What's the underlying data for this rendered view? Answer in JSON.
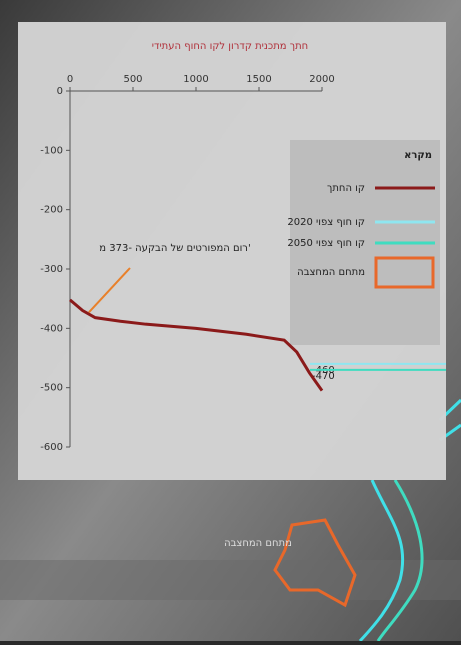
{
  "chart_data": {
    "type": "line",
    "title": "חתך מתכנית קדרון לקו החוף העתידי",
    "x": [
      0,
      100,
      200,
      400,
      600,
      1000,
      1400,
      1700,
      1800,
      1900,
      2000
    ],
    "series": [
      {
        "name": "קו החתך",
        "color": "#8b1a1a",
        "values": [
          -352,
          -370,
          -382,
          -388,
          -393,
          -400,
          -410,
          -420,
          -440,
          -475,
          -505
        ]
      }
    ],
    "xlim": [
      0,
      2000
    ],
    "xticks": [
      0,
      500,
      1000,
      1500,
      2000
    ],
    "ylim": [
      -600,
      0
    ],
    "yticks": [
      0,
      -100,
      -200,
      -300,
      -400,
      -500,
      -600
    ],
    "legend_title": "מקרא",
    "levels": [
      {
        "name": "קו חוף צפוי 2020",
        "color": "#8fe6f0",
        "value": -460
      },
      {
        "name": "קו חוף צפוי 2050",
        "color": "#3fdcc0",
        "value": -470
      }
    ],
    "area": {
      "name": "מתחם המחצבה",
      "color": "#e8682a"
    },
    "annotation": {
      "text": "רום המפורטים של הבקעה -373 מ'",
      "x": 150,
      "y": -373
    },
    "map_label": "מתחם המחצבה"
  }
}
